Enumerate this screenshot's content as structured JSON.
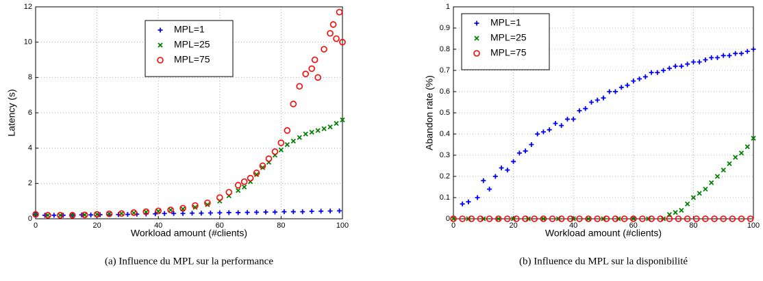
{
  "chart_data": [
    {
      "type": "scatter",
      "xlabel": "Workload amount (#clients)",
      "ylabel": "Latency (s)",
      "caption": "(a)  Influence du MPL sur la performance",
      "xlim": [
        0,
        100
      ],
      "ylim": [
        0,
        12
      ],
      "xticks": [
        0,
        20,
        40,
        60,
        80,
        100
      ],
      "yticks": [
        0,
        2,
        4,
        6,
        8,
        10,
        12
      ],
      "grid": true,
      "legend": "upper center",
      "series": [
        {
          "name": "MPL=1",
          "color": "#0000ff",
          "marker": "plus",
          "x": [
            0,
            3,
            6,
            9,
            12,
            15,
            18,
            21,
            24,
            27,
            30,
            33,
            36,
            39,
            42,
            45,
            48,
            51,
            54,
            57,
            60,
            63,
            66,
            69,
            72,
            75,
            78,
            81,
            84,
            87,
            90,
            93,
            96,
            99
          ],
          "values": [
            0.25,
            0.2,
            0.2,
            0.2,
            0.2,
            0.22,
            0.22,
            0.23,
            0.23,
            0.24,
            0.25,
            0.26,
            0.27,
            0.28,
            0.3,
            0.3,
            0.3,
            0.32,
            0.32,
            0.33,
            0.34,
            0.35,
            0.35,
            0.36,
            0.37,
            0.38,
            0.38,
            0.4,
            0.4,
            0.4,
            0.42,
            0.43,
            0.44,
            0.45
          ]
        },
        {
          "name": "MPL=25",
          "color": "#008000",
          "marker": "cross",
          "x": [
            0,
            4,
            8,
            12,
            16,
            20,
            24,
            28,
            32,
            36,
            40,
            44,
            48,
            52,
            56,
            60,
            63,
            66,
            68,
            70,
            72,
            74,
            76,
            78,
            80,
            82,
            84,
            86,
            88,
            90,
            92,
            94,
            96,
            98,
            100
          ],
          "values": [
            0.25,
            0.2,
            0.2,
            0.2,
            0.22,
            0.25,
            0.27,
            0.3,
            0.33,
            0.38,
            0.42,
            0.5,
            0.55,
            0.65,
            0.8,
            1.0,
            1.3,
            1.6,
            1.8,
            2.1,
            2.5,
            2.9,
            3.2,
            3.6,
            3.9,
            4.2,
            4.4,
            4.6,
            4.8,
            4.9,
            5.0,
            5.1,
            5.2,
            5.4,
            5.6
          ]
        },
        {
          "name": "MPL=75",
          "color": "#ff0000",
          "marker": "circle",
          "x": [
            0,
            4,
            8,
            12,
            16,
            20,
            24,
            28,
            32,
            36,
            40,
            44,
            48,
            52,
            56,
            60,
            63,
            66,
            68,
            70,
            72,
            74,
            76,
            78,
            80,
            82,
            84,
            86,
            88,
            90,
            91,
            92,
            94,
            96,
            97,
            98,
            99,
            100
          ],
          "values": [
            0.25,
            0.2,
            0.2,
            0.2,
            0.22,
            0.25,
            0.28,
            0.3,
            0.35,
            0.4,
            0.45,
            0.5,
            0.6,
            0.75,
            0.9,
            1.2,
            1.5,
            1.9,
            2.1,
            2.3,
            2.6,
            3.0,
            3.4,
            3.8,
            4.3,
            5.0,
            6.5,
            7.5,
            8.2,
            8.5,
            9.0,
            8.0,
            9.6,
            10.5,
            11.0,
            10.2,
            11.7,
            10.0
          ]
        }
      ]
    },
    {
      "type": "scatter",
      "xlabel": "Workload amount (#clients)",
      "ylabel": "Abandon rate (%)",
      "caption": "(b)  Influence du MPL sur la disponibilité",
      "xlim": [
        0,
        100
      ],
      "ylim": [
        0,
        1
      ],
      "xticks": [
        0,
        20,
        40,
        60,
        80,
        100
      ],
      "yticks": [
        0,
        0.1,
        0.2,
        0.3,
        0.4,
        0.5,
        0.6,
        0.7,
        0.8,
        0.9,
        1
      ],
      "grid": true,
      "legend": "upper left",
      "series": [
        {
          "name": "MPL=1",
          "color": "#0000ff",
          "marker": "plus",
          "x": [
            3,
            5,
            8,
            10,
            12,
            14,
            16,
            18,
            20,
            22,
            24,
            26,
            28,
            30,
            32,
            34,
            36,
            38,
            40,
            42,
            44,
            46,
            48,
            50,
            52,
            54,
            56,
            58,
            60,
            62,
            64,
            66,
            68,
            70,
            72,
            74,
            76,
            78,
            80,
            82,
            84,
            86,
            88,
            90,
            92,
            94,
            96,
            98,
            100
          ],
          "values": [
            0.07,
            0.08,
            0.1,
            0.18,
            0.14,
            0.2,
            0.24,
            0.23,
            0.27,
            0.31,
            0.32,
            0.35,
            0.4,
            0.41,
            0.42,
            0.45,
            0.44,
            0.47,
            0.47,
            0.51,
            0.52,
            0.55,
            0.56,
            0.57,
            0.6,
            0.6,
            0.62,
            0.63,
            0.65,
            0.66,
            0.67,
            0.69,
            0.69,
            0.7,
            0.71,
            0.72,
            0.72,
            0.73,
            0.74,
            0.74,
            0.75,
            0.76,
            0.76,
            0.77,
            0.77,
            0.78,
            0.78,
            0.79,
            0.8
          ]
        },
        {
          "name": "MPL=25",
          "color": "#008000",
          "marker": "cross",
          "x": [
            0,
            5,
            10,
            15,
            20,
            25,
            30,
            35,
            40,
            45,
            50,
            55,
            60,
            65,
            70,
            72,
            74,
            76,
            78,
            80,
            82,
            84,
            86,
            88,
            90,
            92,
            94,
            96,
            98,
            100
          ],
          "values": [
            0,
            0,
            0,
            0,
            0,
            0,
            0,
            0,
            0,
            0,
            0,
            0,
            0,
            0,
            0,
            0.02,
            0.03,
            0.04,
            0.07,
            0.1,
            0.12,
            0.14,
            0.17,
            0.2,
            0.23,
            0.26,
            0.29,
            0.31,
            0.34,
            0.38
          ]
        },
        {
          "name": "MPL=75",
          "color": "#ff0000",
          "marker": "circle",
          "x": [
            0,
            3,
            6,
            9,
            12,
            15,
            18,
            21,
            24,
            27,
            30,
            33,
            36,
            39,
            42,
            45,
            48,
            51,
            54,
            57,
            60,
            63,
            66,
            69,
            72,
            75,
            78,
            81,
            84,
            87,
            90,
            93,
            96,
            99
          ],
          "values": [
            0,
            0,
            0,
            0,
            0,
            0,
            0,
            0,
            0,
            0,
            0,
            0,
            0,
            0,
            0,
            0,
            0,
            0,
            0,
            0,
            0,
            0,
            0,
            0,
            0,
            0,
            0,
            0,
            0,
            0,
            0,
            0,
            0,
            0
          ]
        }
      ]
    }
  ]
}
